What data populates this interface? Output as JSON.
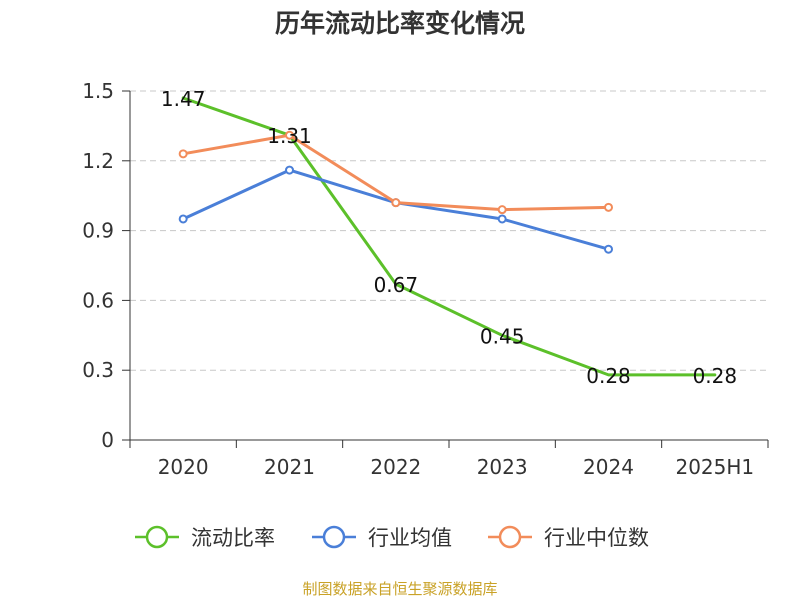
{
  "chart_data": {
    "type": "line",
    "title": "历年流动比率变化情况",
    "categories": [
      "2020",
      "2021",
      "2022",
      "2023",
      "2024",
      "2025H1"
    ],
    "ylim": [
      0,
      1.5
    ],
    "yticks": [
      "0",
      "0.3",
      "0.6",
      "0.9",
      "1.2",
      "1.5"
    ],
    "grid": true,
    "legend_position": "bottom",
    "series": [
      {
        "name": "流动比率",
        "color": "#5cc02a",
        "values": [
          1.47,
          1.31,
          0.67,
          0.45,
          0.28,
          0.28
        ],
        "labels": [
          "1.47",
          "1.31",
          "0.67",
          "0.45",
          "0.28",
          "0.28"
        ],
        "markers": false
      },
      {
        "name": "行业均值",
        "color": "#4a7fd8",
        "values": [
          0.95,
          1.16,
          1.02,
          0.95,
          0.82,
          null
        ],
        "markers": true
      },
      {
        "name": "行业中位数",
        "color": "#f28c5a",
        "values": [
          1.23,
          1.31,
          1.02,
          0.99,
          1.0,
          null
        ],
        "markers": true
      }
    ],
    "source": "制图数据来自恒生聚源数据库"
  }
}
